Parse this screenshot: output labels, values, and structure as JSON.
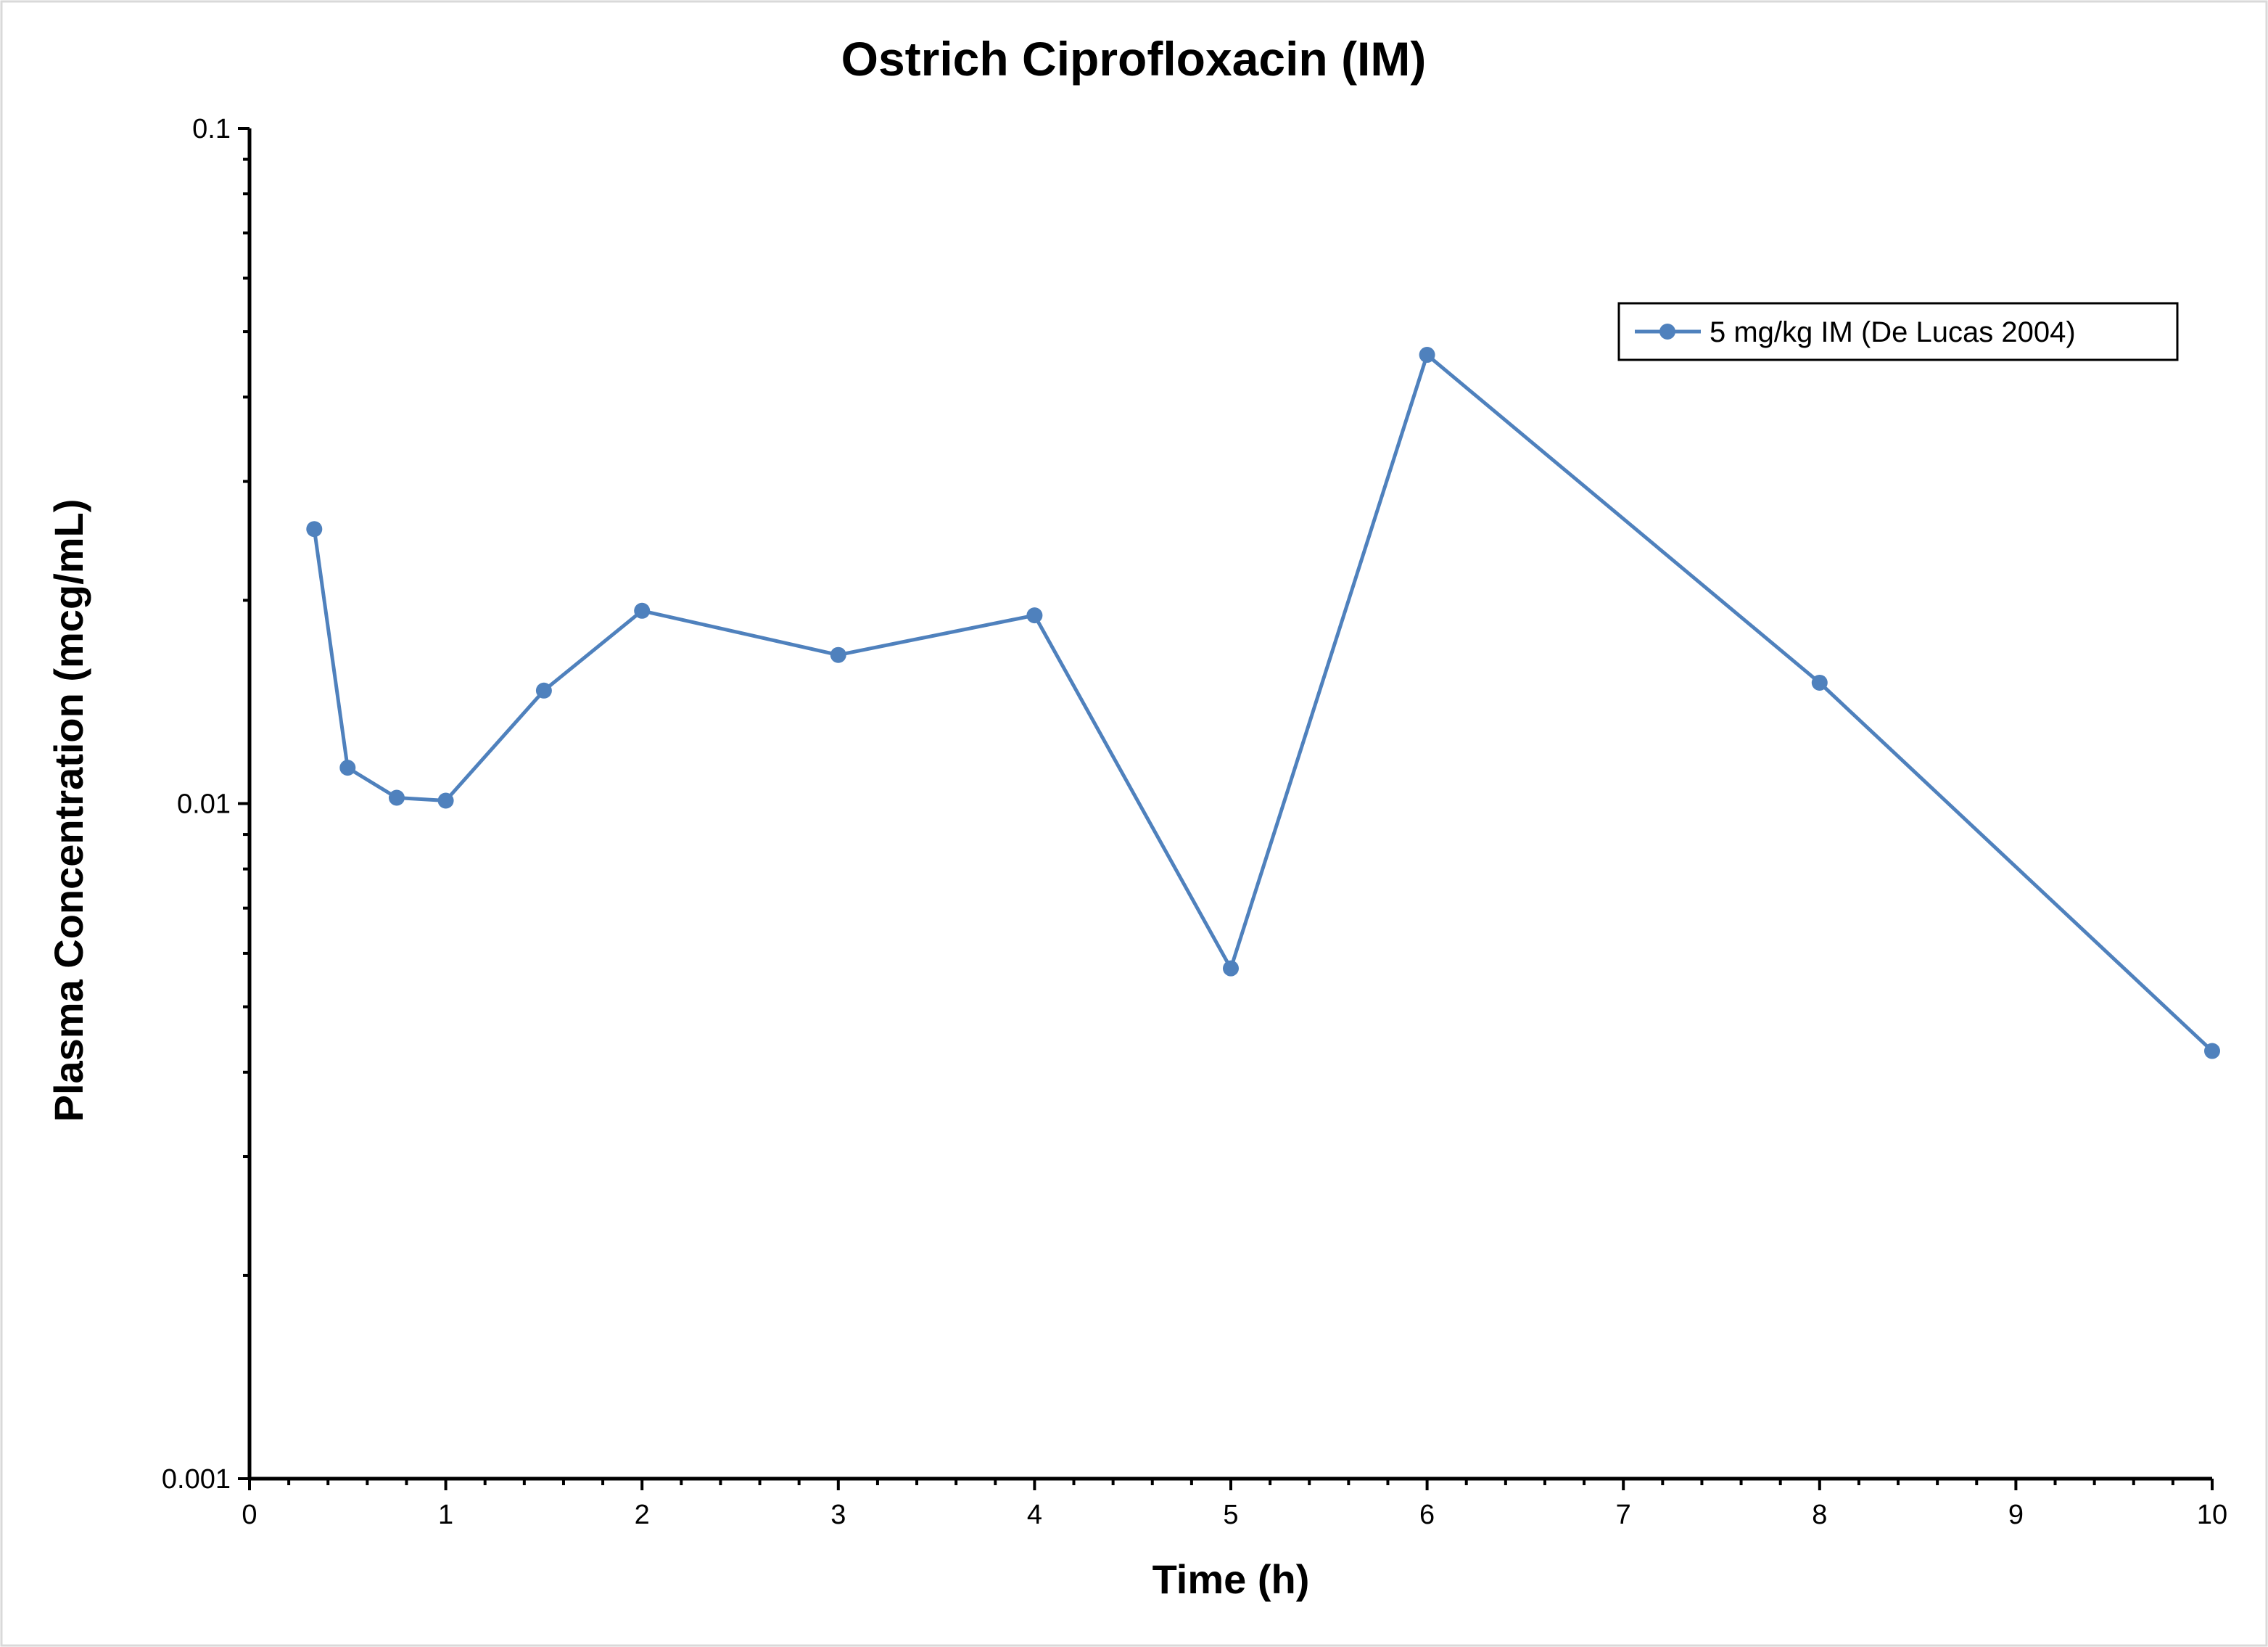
{
  "chart_data": {
    "type": "line",
    "title": "Ostrich Ciprofloxacin (IM)",
    "xlabel": "Time (h)",
    "ylabel": "Plasma Concentration (mcg/mL)",
    "xlim": [
      0,
      10
    ],
    "ylim": [
      0.001,
      0.1
    ],
    "yscale": "log",
    "x_ticks": [
      "0",
      "1",
      "2",
      "3",
      "4",
      "5",
      "6",
      "7",
      "8",
      "9",
      "10"
    ],
    "y_ticks": [
      "0.001",
      "0.01",
      "0.1"
    ],
    "grid": false,
    "legend_position": "top-right",
    "series": [
      {
        "name": "5 mg/kg IM (De Lucas 2004)",
        "color": "#4f81bd",
        "marker": "circle",
        "x": [
          0.33,
          0.5,
          0.75,
          1,
          1.5,
          2,
          3,
          4,
          5,
          6,
          8,
          10
        ],
        "y": [
          0.0255,
          0.0113,
          0.0102,
          0.0101,
          0.0147,
          0.0193,
          0.0166,
          0.019,
          0.0057,
          0.0462,
          0.0151,
          0.0043
        ]
      }
    ]
  }
}
